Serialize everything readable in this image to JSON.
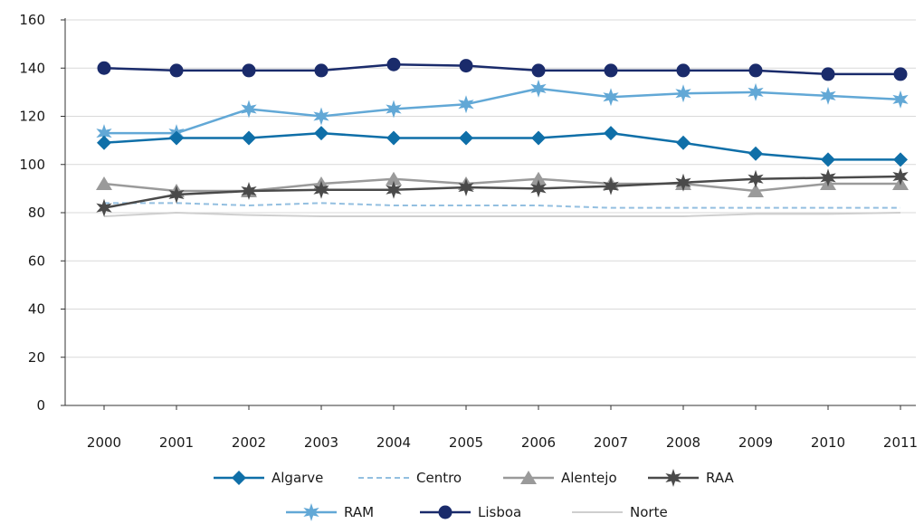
{
  "chart_data": {
    "type": "line",
    "title": "",
    "xlabel": "",
    "ylabel": "",
    "x": [
      "2000",
      "2001",
      "2002",
      "2003",
      "2004",
      "2005",
      "2006",
      "2007",
      "2008",
      "2009",
      "2010",
      "2011"
    ],
    "ylim": [
      0,
      160
    ],
    "yticks": [
      0,
      20,
      40,
      60,
      80,
      100,
      120,
      140,
      160
    ],
    "grid": "horizontal",
    "legend_position": "bottom",
    "series": [
      {
        "name": "Algarve",
        "color": "#0f6fa8",
        "marker": "diamond",
        "dash": false,
        "values": [
          109,
          111,
          111,
          113,
          111,
          111,
          111,
          113,
          109,
          104.5,
          102,
          102
        ]
      },
      {
        "name": "Centro",
        "color": "#93bfe0",
        "marker": "none",
        "dash": true,
        "values": [
          84,
          84,
          83,
          84,
          83,
          83,
          83,
          82,
          82,
          82,
          82,
          82
        ]
      },
      {
        "name": "Alentejo",
        "color": "#9a9a9a",
        "marker": "triangle",
        "dash": false,
        "values": [
          92,
          89,
          89,
          92,
          94,
          92,
          94,
          92,
          92,
          89,
          92,
          92
        ]
      },
      {
        "name": "RAA",
        "color": "#4a4a4a",
        "marker": "star6",
        "dash": false,
        "values": [
          82,
          87.5,
          89,
          89.5,
          89.5,
          90.5,
          90,
          91,
          92.5,
          94,
          94.5,
          95
        ]
      },
      {
        "name": "RAM",
        "color": "#62a8d6",
        "marker": "star6",
        "dash": false,
        "values": [
          113,
          113,
          123,
          120,
          123,
          125,
          131.5,
          128,
          129.5,
          130,
          128.5,
          127
        ]
      },
      {
        "name": "Lisboa",
        "color": "#1a2b6b",
        "marker": "circle",
        "dash": false,
        "values": [
          140,
          139,
          139,
          139,
          141.5,
          141,
          139,
          139,
          139,
          139,
          137.5,
          137.5
        ]
      },
      {
        "name": "Norte",
        "color": "#cfcfcf",
        "marker": "none",
        "dash": false,
        "values": [
          78.5,
          80,
          79,
          78.5,
          78.5,
          78.5,
          78.5,
          78.5,
          78.5,
          79.5,
          79.5,
          80
        ]
      }
    ]
  }
}
